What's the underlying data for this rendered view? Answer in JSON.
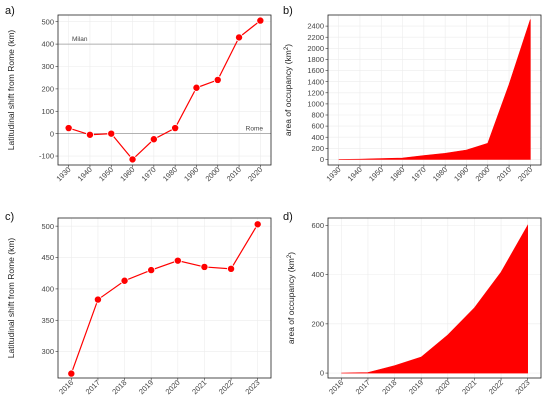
{
  "chart_data": [
    {
      "panel": "a)",
      "type": "line",
      "categories": [
        "1930",
        "1940",
        "1950",
        "1960",
        "1970",
        "1980",
        "1990",
        "2000",
        "2010",
        "2020"
      ],
      "values": [
        25,
        -5,
        0,
        -115,
        -25,
        25,
        205,
        240,
        430,
        505
      ],
      "ylabel": "Latitudinal shift from Rome (km)",
      "ylim": [
        -140,
        530
      ],
      "yticks": [
        -100,
        0,
        100,
        200,
        300,
        400,
        500
      ],
      "reference_lines": [
        {
          "value": 400,
          "label": "Milan",
          "label_side": "left"
        },
        {
          "value": 0,
          "label": "Rome",
          "label_side": "right"
        }
      ],
      "color": "#ff0000",
      "grid": true
    },
    {
      "panel": "b)",
      "type": "area",
      "categories": [
        "1930",
        "1940",
        "1950",
        "1960",
        "1970",
        "1980",
        "1990",
        "2000",
        "2010",
        "2020"
      ],
      "values": [
        0,
        5,
        15,
        25,
        70,
        110,
        170,
        290,
        1350,
        2520
      ],
      "ylabel_main": "area of occupancy (km",
      "ylabel_sup": "2",
      "ylabel_end": ")",
      "ylim": [
        -100,
        2600
      ],
      "yticks": [
        0,
        200,
        400,
        600,
        800,
        1000,
        1200,
        1400,
        1600,
        1800,
        2000,
        2200,
        2400
      ],
      "color": "#ff0000",
      "grid": true
    },
    {
      "panel": "c)",
      "type": "line",
      "categories": [
        "2016",
        "2017",
        "2018",
        "2019",
        "2020",
        "2021",
        "2022",
        "2023"
      ],
      "values": [
        265,
        383,
        413,
        430,
        445,
        435,
        432,
        503
      ],
      "ylabel": "Latitudinal shift from Rome (km)",
      "ylim": [
        258,
        513
      ],
      "yticks": [
        300,
        350,
        400,
        450,
        500
      ],
      "color": "#ff0000",
      "grid": true
    },
    {
      "panel": "d)",
      "type": "area",
      "categories": [
        "2016",
        "2017",
        "2018",
        "2019",
        "2020",
        "2021",
        "2022",
        "2023"
      ],
      "values": [
        0,
        2,
        30,
        65,
        155,
        265,
        410,
        600
      ],
      "ylabel_main": "area of occupancy (km",
      "ylabel_sup": "2",
      "ylabel_end": ")",
      "ylim": [
        -20,
        630
      ],
      "yticks": [
        0,
        200,
        400,
        600
      ],
      "color": "#ff0000",
      "grid": true
    }
  ]
}
